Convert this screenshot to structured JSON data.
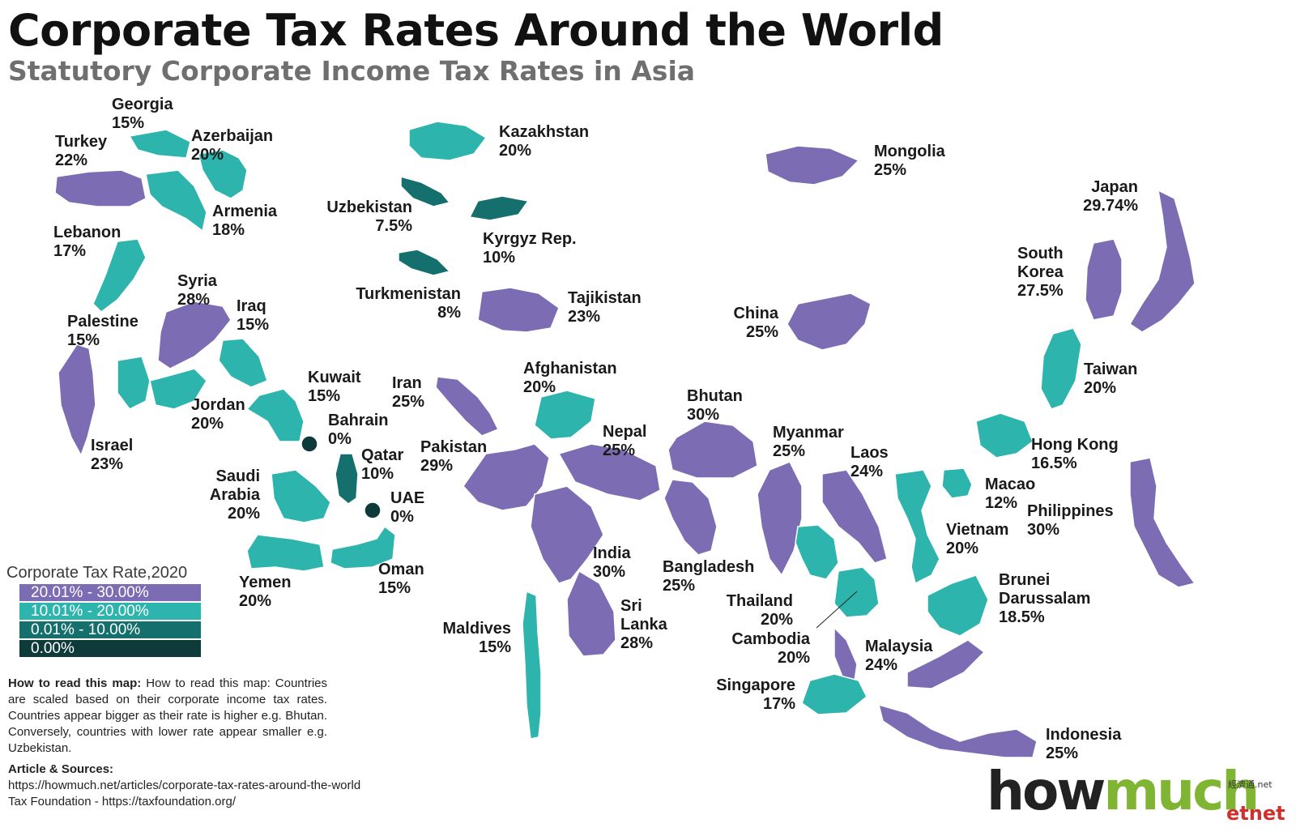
{
  "title": "Corporate Tax Rates Around the World",
  "subtitle": "Statutory Corporate Income Tax Rates in Asia",
  "colors": {
    "high": "#7b6cb3",
    "mid": "#2db4ad",
    "low": "#15706d",
    "zero": "#0f3a3a"
  },
  "countries": [
    {
      "name": "Georgia",
      "rate": "15%"
    },
    {
      "name": "Turkey",
      "rate": "22%"
    },
    {
      "name": "Azerbaijan",
      "rate": "20%"
    },
    {
      "name": "Armenia",
      "rate": "18%"
    },
    {
      "name": "Lebanon",
      "rate": "17%"
    },
    {
      "name": "Syria",
      "rate": "28%"
    },
    {
      "name": "Iraq",
      "rate": "15%"
    },
    {
      "name": "Palestine",
      "rate": "15%"
    },
    {
      "name": "Kuwait",
      "rate": "15%"
    },
    {
      "name": "Jordan",
      "rate": "20%"
    },
    {
      "name": "Israel",
      "rate": "23%"
    },
    {
      "name": "Bahrain",
      "rate": "0%"
    },
    {
      "name": "Qatar",
      "rate": "10%"
    },
    {
      "name": "Saudi",
      "name2": "Arabia",
      "rate": "20%"
    },
    {
      "name": "UAE",
      "rate": "0%"
    },
    {
      "name": "Yemen",
      "rate": "20%"
    },
    {
      "name": "Oman",
      "rate": "15%"
    },
    {
      "name": "Kazakhstan",
      "rate": "20%"
    },
    {
      "name": "Uzbekistan",
      "rate": "7.5%"
    },
    {
      "name": "Kyrgyz Rep.",
      "rate": "10%"
    },
    {
      "name": "Turkmenistan",
      "rate": "8%"
    },
    {
      "name": "Tajikistan",
      "rate": "23%"
    },
    {
      "name": "Iran",
      "rate": "25%"
    },
    {
      "name": "Afghanistan",
      "rate": "20%"
    },
    {
      "name": "Pakistan",
      "rate": "29%"
    },
    {
      "name": "Nepal",
      "rate": "25%"
    },
    {
      "name": "India",
      "rate": "30%"
    },
    {
      "name": "Sri",
      "name2": "Lanka",
      "rate": "28%"
    },
    {
      "name": "Maldives",
      "rate": "15%"
    },
    {
      "name": "Bhutan",
      "rate": "30%"
    },
    {
      "name": "Bangladesh",
      "rate": "25%"
    },
    {
      "name": "Mongolia",
      "rate": "25%"
    },
    {
      "name": "China",
      "rate": "25%"
    },
    {
      "name": "Myanmar",
      "rate": "25%"
    },
    {
      "name": "Laos",
      "rate": "24%"
    },
    {
      "name": "Thailand",
      "rate": "20%"
    },
    {
      "name": "Cambodia",
      "rate": "20%"
    },
    {
      "name": "Vietnam",
      "rate": "20%"
    },
    {
      "name": "Malaysia",
      "rate": "24%"
    },
    {
      "name": "Singapore",
      "rate": "17%"
    },
    {
      "name": "Indonesia",
      "rate": "25%"
    },
    {
      "name": "Brunei",
      "name2": "Darussalam",
      "rate": "18.5%"
    },
    {
      "name": "Philippines",
      "rate": "30%"
    },
    {
      "name": "Macao",
      "rate": "12%"
    },
    {
      "name": "Hong Kong",
      "rate": "16.5%"
    },
    {
      "name": "Taiwan",
      "rate": "20%"
    },
    {
      "name": "South",
      "name2": "Korea",
      "rate": "27.5%"
    },
    {
      "name": "Japan",
      "rate": "29.74%"
    }
  ],
  "legend": {
    "title": "Corporate Tax Rate,2020",
    "items": [
      {
        "label": "20.01% - 30.00%",
        "color": "#7b6cb3"
      },
      {
        "label": "10.01% - 20.00%",
        "color": "#2db4ad"
      },
      {
        "label": "0.01% - 10.00%",
        "color": "#15706d"
      },
      {
        "label": "0.00%",
        "color": "#0f3a3a"
      }
    ]
  },
  "howto": {
    "heading": "How to read this map:",
    "text": " How to read this map: Countries are scaled based on their corporate income tax rates. Countries appear bigger as their rate is higher e.g. Bhutan. Conversely, countries with lower rate appear smaller e.g. Uzbekistan."
  },
  "sources": {
    "heading": "Article & Sources:",
    "line1": "https://howmuch.net/articles/corporate-tax-rates-around-the-world",
    "line2": "Tax Foundation - https://taxfoundation.org/"
  },
  "logo": {
    "part1": "how",
    "part2": "much",
    "suffix": ".net",
    "partner": "etnet",
    "partner_cn": "經濟通"
  }
}
